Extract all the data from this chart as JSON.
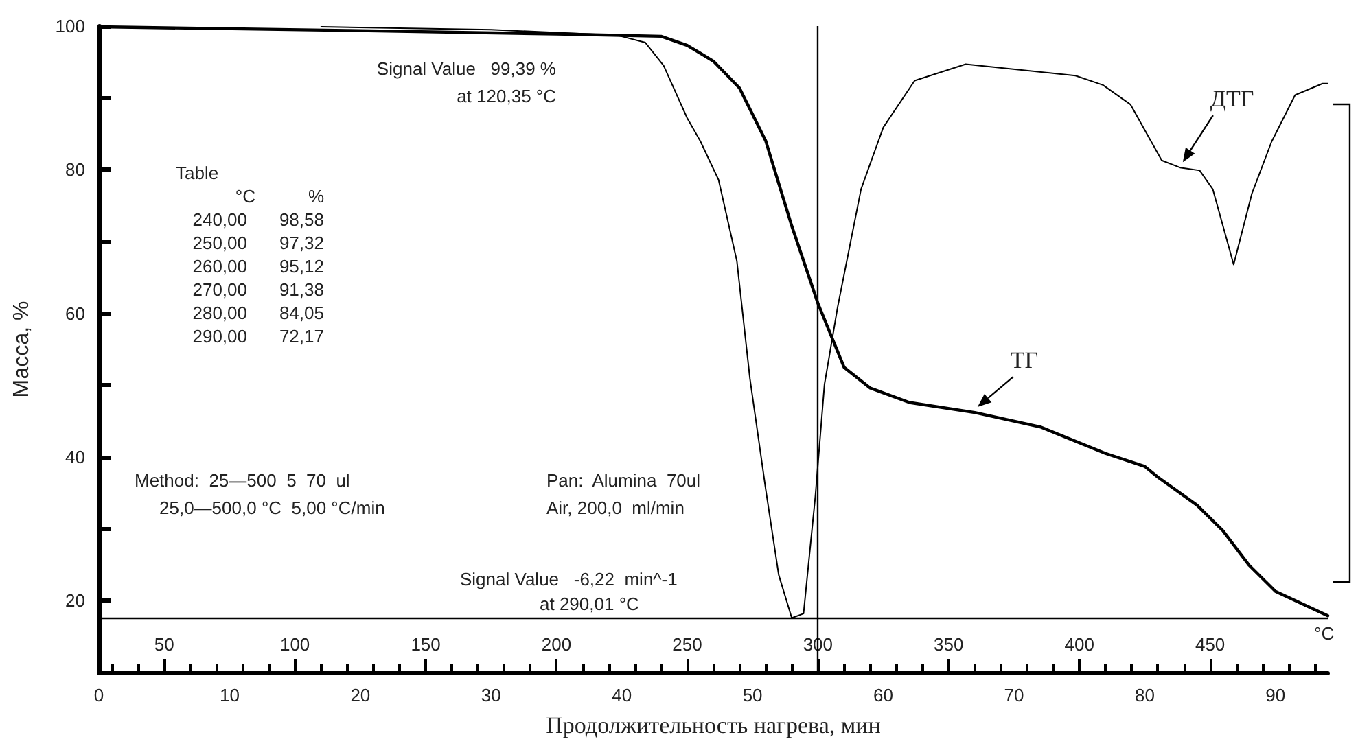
{
  "chart_data": {
    "type": "line",
    "xlabel": "Продолжительность нагрева, мин",
    "ylabel": "Масса, %",
    "x2label": "°C",
    "xlim": [
      0,
      94
    ],
    "xticks": [
      0,
      10,
      20,
      30,
      40,
      50,
      60,
      70,
      80,
      90
    ],
    "x2lim": [
      25,
      495
    ],
    "x2ticks": [
      {
        "value": 30,
        "label": null
      },
      {
        "value": 40,
        "label": null
      },
      50,
      {
        "value": 60,
        "label": null
      },
      {
        "value": 70,
        "label": null
      },
      {
        "value": 80,
        "label": null
      },
      {
        "value": 90,
        "label": null
      },
      100,
      {
        "value": 110,
        "label": null
      },
      {
        "value": 120,
        "label": null
      },
      {
        "value": 130,
        "label": null
      },
      {
        "value": 140,
        "label": null
      },
      150,
      {
        "value": 160,
        "label": null
      },
      {
        "value": 170,
        "label": null
      },
      {
        "value": 180,
        "label": null
      },
      {
        "value": 190,
        "label": null
      },
      200,
      {
        "value": 210,
        "label": null
      },
      {
        "value": 220,
        "label": null
      },
      {
        "value": 230,
        "label": null
      },
      {
        "value": 240,
        "label": null
      },
      250,
      {
        "value": 260,
        "label": null
      },
      {
        "value": 270,
        "label": null
      },
      {
        "value": 280,
        "label": null
      },
      {
        "value": 290,
        "label": null
      },
      300,
      {
        "value": 310,
        "label": null
      },
      {
        "value": 320,
        "label": null
      },
      {
        "value": 330,
        "label": null
      },
      {
        "value": 340,
        "label": null
      },
      350,
      {
        "value": 360,
        "label": null
      },
      {
        "value": 370,
        "label": null
      },
      {
        "value": 380,
        "label": null
      },
      {
        "value": 390,
        "label": null
      },
      400,
      {
        "value": 410,
        "label": null
      },
      {
        "value": 420,
        "label": null
      },
      {
        "value": 430,
        "label": null
      },
      {
        "value": 440,
        "label": null
      },
      450,
      {
        "value": 460,
        "label": null
      },
      {
        "value": 470,
        "label": null
      },
      {
        "value": 480,
        "label": null
      },
      {
        "value": 490,
        "label": null
      }
    ],
    "ylim": [
      10,
      100
    ],
    "yticks": [
      20,
      {
        "value": 30,
        "label": null
      },
      40,
      {
        "value": 50,
        "label": null
      },
      60,
      {
        "value": 70,
        "label": null
      },
      80,
      {
        "value": 90,
        "label": null
      },
      100
    ],
    "grid": false,
    "legend": false,
    "marker": "none",
    "line_style": "solid",
    "series": [
      {
        "name": "ТГ",
        "color": "#000000",
        "x": [
          0,
          19,
          35,
          43,
          45,
          47,
          49,
          51,
          53,
          55,
          57,
          59,
          62,
          67,
          72,
          77,
          80,
          81,
          84,
          86,
          88,
          90,
          94
        ],
        "values": [
          99.9,
          99.39,
          98.9,
          98.58,
          97.32,
          95.12,
          91.38,
          84.05,
          72.17,
          61.4,
          52.5,
          49.6,
          47.6,
          46.2,
          44.2,
          40.5,
          38.7,
          37.2,
          33.3,
          29.7,
          24.9,
          21.3,
          17.9
        ]
      },
      {
        "name": "ДТГ",
        "color": "#000000",
        "x": [
          17,
          30,
          39.7,
          41.8,
          43.2,
          45,
          46,
          47.4,
          48.8,
          49.8,
          51,
          52,
          53,
          53.9,
          54.8,
          55.5,
          56.5,
          58.3,
          60,
          62.4,
          66.3,
          74.7,
          76.8,
          78.9,
          81.3,
          82.7,
          84.2,
          85.2,
          86.8,
          88.2,
          89.7,
          91.5,
          93.6,
          94
        ],
        "values": [
          99.9,
          99.5,
          98.7,
          97.7,
          94.5,
          87.2,
          84,
          78.6,
          67.3,
          50.9,
          35.6,
          23.6,
          17.6,
          18.2,
          34.5,
          50.1,
          60.8,
          77.3,
          85.9,
          92.4,
          94.7,
          93.1,
          91.8,
          89.1,
          81.3,
          80.3,
          79.9,
          77.3,
          66.8,
          76.7,
          83.9,
          90.4,
          92,
          92
        ]
      }
    ],
    "ref_lines": [
      {
        "axis": "x",
        "value": 55
      },
      {
        "axis": "y",
        "value": 17.6
      }
    ],
    "annotations": [
      "Signal Value   99,39 %\nat 120,35 °C",
      "Table\n°C      %\n240,00   98,58\n250,00   97,32\n260,00   95,12\n270,00   91,38\n280,00   84,05\n290,00   72,17",
      "Method:  25—500  5  70  ul\n25,0—500,0 °C  5,00 °C/min",
      "Pan:  Alumina  70ul\nAir, 200,0  ml/min",
      "Signal Value   -6,22  min^-1\nat 290,01 °C"
    ]
  }
}
